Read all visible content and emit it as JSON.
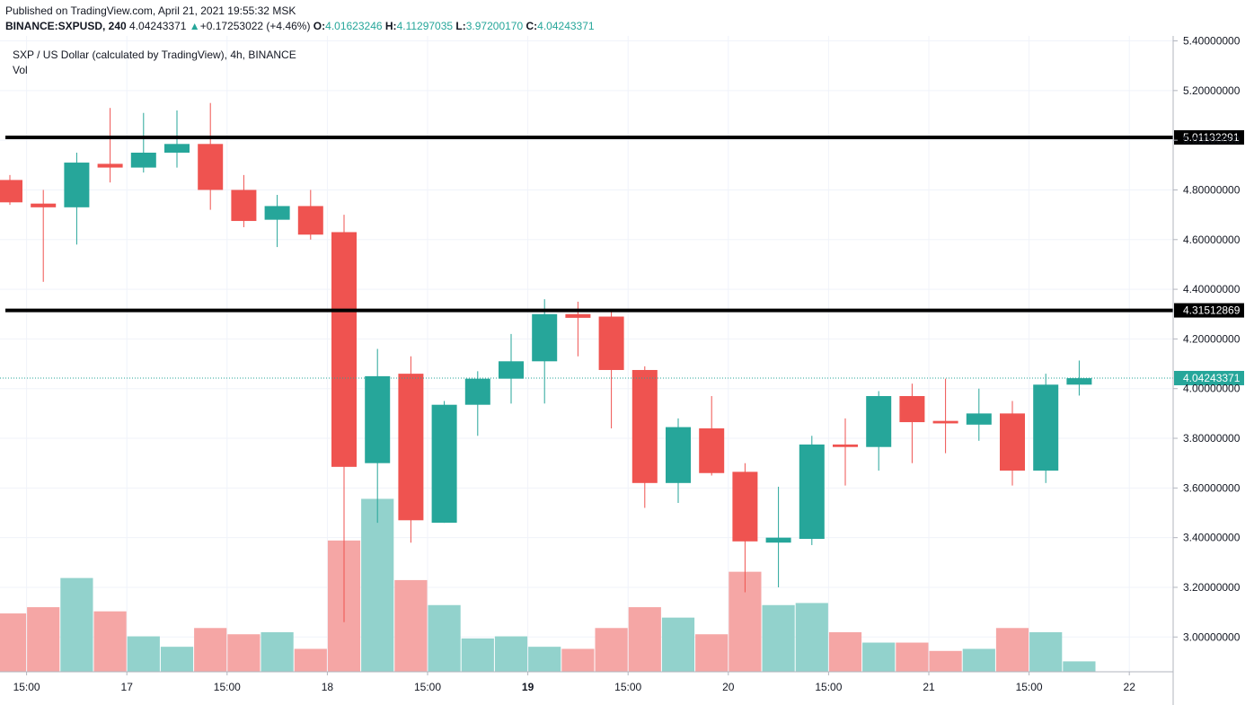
{
  "header": {
    "published": "Published on TradingView.com, April 21, 2021 19:55:32 MSK",
    "symbol": "BINANCE:SXPUSD, 240",
    "last": "4.04243371",
    "change": "+0.17253022 (+4.46%)",
    "o_label": "O:",
    "o_value": "4.01623246",
    "h_label": "H:",
    "h_value": "4.11297035",
    "l_label": "L:",
    "l_value": "3.97200170",
    "c_label": "C:",
    "c_value": "4.04243371"
  },
  "legend": {
    "title": "SXP / US Dollar (calculated by TradingView), 4h, BINANCE",
    "volume_label": "Vol"
  },
  "colors": {
    "up": "#26a69a",
    "down": "#ef5350",
    "up_volume": "#92d2cc",
    "down_volume": "#f5a6a5",
    "level_line": "#000000",
    "last_price": "#26a69a"
  },
  "chart_data": {
    "type": "candlestick",
    "interval": "4h",
    "ylim": [
      2.86,
      5.42
    ],
    "y_ticks": [
      "5.40000000",
      "5.20000000",
      "5.00000000",
      "4.80000000",
      "4.60000000",
      "4.40000000",
      "4.20000000",
      "4.00000000",
      "3.80000000",
      "3.60000000",
      "3.40000000",
      "3.20000000",
      "3.00000000"
    ],
    "x_ticks": [
      {
        "label": "15:00",
        "index": 0.5,
        "bold": false
      },
      {
        "label": "17",
        "index": 3.5,
        "bold": false
      },
      {
        "label": "15:00",
        "index": 6.5,
        "bold": false
      },
      {
        "label": "18",
        "index": 9.5,
        "bold": false
      },
      {
        "label": "15:00",
        "index": 12.5,
        "bold": false
      },
      {
        "label": "19",
        "index": 15.5,
        "bold": true
      },
      {
        "label": "15:00",
        "index": 18.5,
        "bold": false
      },
      {
        "label": "20",
        "index": 21.5,
        "bold": false
      },
      {
        "label": "15:00",
        "index": 24.5,
        "bold": false
      },
      {
        "label": "21",
        "index": 27.5,
        "bold": false
      },
      {
        "label": "15:00",
        "index": 30.5,
        "bold": false
      },
      {
        "label": "22",
        "index": 33.5,
        "bold": false
      }
    ],
    "candles": [
      {
        "o": 4.84,
        "h": 4.86,
        "l": 4.74,
        "c": 4.75,
        "v": 0.28
      },
      {
        "o": 4.745,
        "h": 4.8,
        "l": 4.43,
        "c": 4.73,
        "v": 0.31
      },
      {
        "o": 4.73,
        "h": 4.95,
        "l": 4.58,
        "c": 4.91,
        "v": 0.45
      },
      {
        "o": 4.905,
        "h": 5.13,
        "l": 4.83,
        "c": 4.89,
        "v": 0.29
      },
      {
        "o": 4.89,
        "h": 5.11,
        "l": 4.87,
        "c": 4.95,
        "v": 0.17
      },
      {
        "o": 4.95,
        "h": 5.12,
        "l": 4.89,
        "c": 4.985,
        "v": 0.12
      },
      {
        "o": 4.985,
        "h": 5.15,
        "l": 4.72,
        "c": 4.8,
        "v": 0.21
      },
      {
        "o": 4.8,
        "h": 4.86,
        "l": 4.65,
        "c": 4.675,
        "v": 0.18
      },
      {
        "o": 4.68,
        "h": 4.78,
        "l": 4.57,
        "c": 4.735,
        "v": 0.19
      },
      {
        "o": 4.735,
        "h": 4.8,
        "l": 4.6,
        "c": 4.62,
        "v": 0.11
      },
      {
        "o": 4.63,
        "h": 4.7,
        "l": 3.06,
        "c": 3.685,
        "v": 0.63
      },
      {
        "o": 3.7,
        "h": 4.16,
        "l": 3.46,
        "c": 4.05,
        "v": 0.83
      },
      {
        "o": 4.06,
        "h": 4.13,
        "l": 3.38,
        "c": 3.47,
        "v": 0.44
      },
      {
        "o": 3.46,
        "h": 3.95,
        "l": 3.46,
        "c": 3.935,
        "v": 0.32
      },
      {
        "o": 3.935,
        "h": 4.07,
        "l": 3.81,
        "c": 4.04,
        "v": 0.16
      },
      {
        "o": 4.04,
        "h": 4.22,
        "l": 3.94,
        "c": 4.11,
        "v": 0.17
      },
      {
        "o": 4.11,
        "h": 4.36,
        "l": 3.94,
        "c": 4.3,
        "v": 0.12
      },
      {
        "o": 4.3,
        "h": 4.35,
        "l": 4.13,
        "c": 4.285,
        "v": 0.11
      },
      {
        "o": 4.29,
        "h": 4.31,
        "l": 3.84,
        "c": 4.075,
        "v": 0.21
      },
      {
        "o": 4.075,
        "h": 4.09,
        "l": 3.52,
        "c": 3.62,
        "v": 0.31
      },
      {
        "o": 3.62,
        "h": 3.88,
        "l": 3.54,
        "c": 3.845,
        "v": 0.26
      },
      {
        "o": 3.84,
        "h": 3.97,
        "l": 3.65,
        "c": 3.66,
        "v": 0.18
      },
      {
        "o": 3.665,
        "h": 3.7,
        "l": 3.18,
        "c": 3.385,
        "v": 0.48
      },
      {
        "o": 3.38,
        "h": 3.605,
        "l": 3.2,
        "c": 3.4,
        "v": 0.32
      },
      {
        "o": 3.395,
        "h": 3.81,
        "l": 3.37,
        "c": 3.775,
        "v": 0.33
      },
      {
        "o": 3.775,
        "h": 3.88,
        "l": 3.61,
        "c": 3.765,
        "v": 0.19
      },
      {
        "o": 3.765,
        "h": 3.99,
        "l": 3.67,
        "c": 3.97,
        "v": 0.14
      },
      {
        "o": 3.97,
        "h": 4.02,
        "l": 3.7,
        "c": 3.865,
        "v": 0.14
      },
      {
        "o": 3.87,
        "h": 4.04,
        "l": 3.74,
        "c": 3.86,
        "v": 0.1
      },
      {
        "o": 3.855,
        "h": 4.0,
        "l": 3.79,
        "c": 3.9,
        "v": 0.11
      },
      {
        "o": 3.9,
        "h": 3.95,
        "l": 3.61,
        "c": 3.67,
        "v": 0.21
      },
      {
        "o": 3.67,
        "h": 4.06,
        "l": 3.62,
        "c": 4.016,
        "v": 0.19
      },
      {
        "o": 4.016,
        "h": 4.113,
        "l": 3.972,
        "c": 4.042,
        "v": 0.05
      }
    ],
    "horizontal_lines": [
      {
        "value": 5.01132291,
        "label": "5.01132291"
      },
      {
        "value": 4.31512869,
        "label": "4.31512869"
      }
    ],
    "last_price": {
      "value": 4.04243371,
      "label": "4.04243371"
    }
  }
}
